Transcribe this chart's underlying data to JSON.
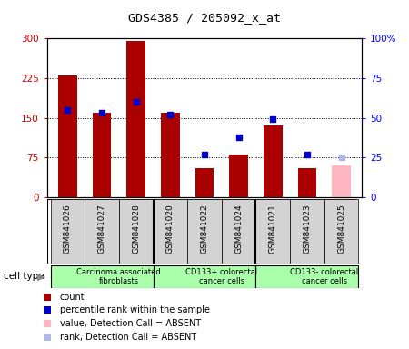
{
  "title": "GDS4385 / 205092_x_at",
  "samples": [
    "GSM841026",
    "GSM841027",
    "GSM841028",
    "GSM841020",
    "GSM841022",
    "GSM841024",
    "GSM841021",
    "GSM841023",
    "GSM841025"
  ],
  "counts": [
    230,
    160,
    295,
    160,
    55,
    80,
    135,
    55,
    60
  ],
  "ranks": [
    55,
    53,
    60,
    52,
    27,
    38,
    49,
    27,
    25
  ],
  "absent_flags": [
    false,
    false,
    false,
    false,
    false,
    false,
    false,
    false,
    true
  ],
  "rank_absent_flags": [
    false,
    false,
    false,
    false,
    false,
    false,
    false,
    false,
    true
  ],
  "groups": [
    {
      "label": "Carcinoma associated\nfibroblasts",
      "start": 0,
      "end": 3,
      "color": "#aaffaa"
    },
    {
      "label": "CD133+ colorectal\ncancer cells",
      "start": 3,
      "end": 6,
      "color": "#aaffaa"
    },
    {
      "label": "CD133- colorectal\ncancer cells",
      "start": 6,
      "end": 9,
      "color": "#aaffaa"
    }
  ],
  "bar_color": "#aa0000",
  "bar_absent_color": "#ffb6c1",
  "rank_color": "#0000cc",
  "rank_absent_color": "#b0b8e8",
  "ylim_left": [
    0,
    300
  ],
  "ylim_right": [
    0,
    100
  ],
  "yticks_left": [
    0,
    75,
    150,
    225,
    300
  ],
  "yticks_right": [
    0,
    25,
    50,
    75,
    100
  ],
  "ytick_labels_left": [
    "0",
    "75",
    "150",
    "225",
    "300"
  ],
  "ytick_labels_right": [
    "0",
    "25",
    "50",
    "75",
    "100%"
  ],
  "bar_width": 0.55,
  "bg_color": "#d3d3d3",
  "group_dividers": [
    3,
    6
  ]
}
